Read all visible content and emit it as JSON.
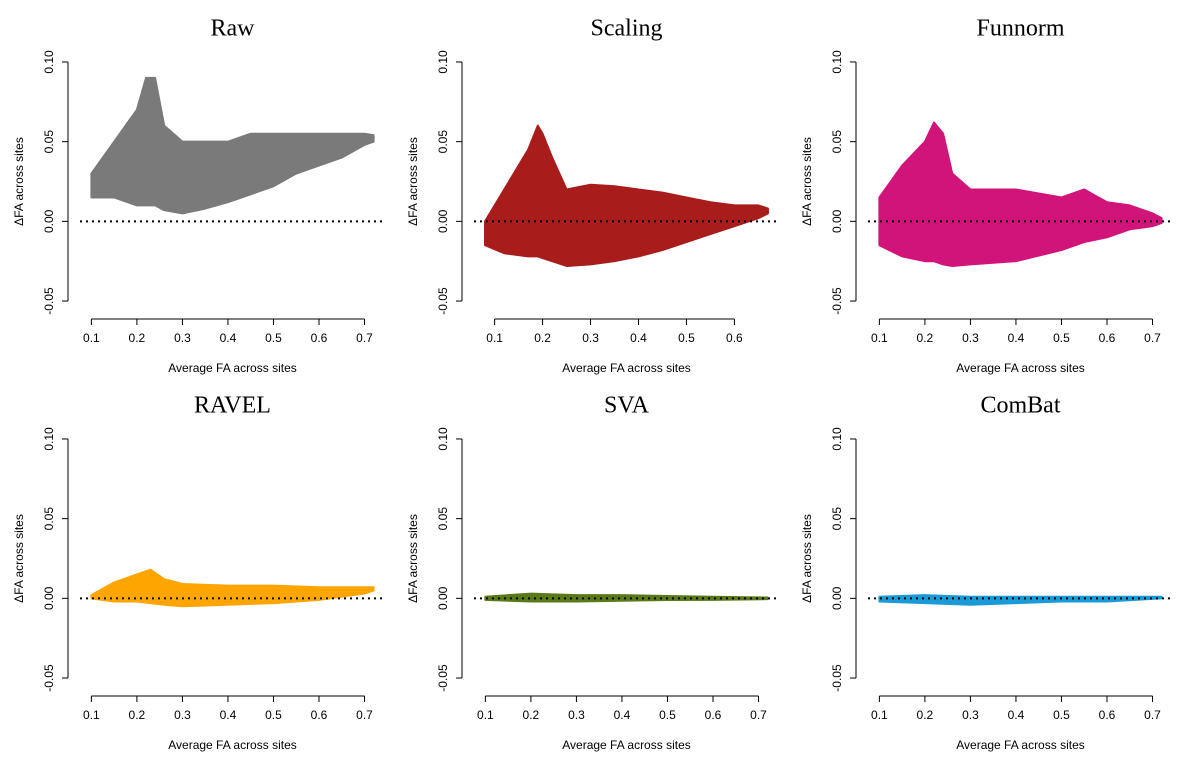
{
  "chart_data": [
    {
      "type": "scatter",
      "title": "Raw",
      "xlabel": "Average FA across sites",
      "ylabel": "ΔFA across sites",
      "color": "#7a7a7a",
      "x": [
        0.1,
        0.15,
        0.2,
        0.22,
        0.24,
        0.26,
        0.3,
        0.35,
        0.4,
        0.45,
        0.5,
        0.55,
        0.6,
        0.65,
        0.7,
        0.72
      ],
      "upper": [
        0.03,
        0.05,
        0.07,
        0.09,
        0.09,
        0.06,
        0.05,
        0.05,
        0.05,
        0.055,
        0.055,
        0.055,
        0.055,
        0.055,
        0.055,
        0.054
      ],
      "lower": [
        0.015,
        0.015,
        0.01,
        0.01,
        0.01,
        0.007,
        0.005,
        0.008,
        0.012,
        0.017,
        0.022,
        0.03,
        0.035,
        0.04,
        0.048,
        0.05
      ],
      "hline": 0,
      "xlim": [
        0.075,
        0.745
      ],
      "xticks": [
        0.1,
        0.2,
        0.3,
        0.4,
        0.5,
        0.6,
        0.7
      ],
      "ylim": [
        -0.055,
        0.105
      ],
      "yticks": [
        -0.05,
        {
          "value": 0,
          "label": "0.00"
        },
        0.05,
        {
          "value": 0.1,
          "label": "0.10"
        }
      ]
    },
    {
      "type": "scatter",
      "title": "Scaling",
      "xlabel": "Average FA across sites",
      "ylabel": "ΔFA across sites",
      "color": "#a81c1c",
      "x": [
        0.08,
        0.12,
        0.17,
        0.19,
        0.2,
        0.22,
        0.25,
        0.3,
        0.35,
        0.4,
        0.45,
        0.5,
        0.55,
        0.6,
        0.65,
        0.67
      ],
      "upper": [
        0.0,
        0.02,
        0.045,
        0.06,
        0.055,
        0.04,
        0.02,
        0.023,
        0.022,
        0.02,
        0.018,
        0.015,
        0.012,
        0.01,
        0.01,
        0.008
      ],
      "lower": [
        -0.015,
        -0.02,
        -0.022,
        -0.022,
        -0.023,
        -0.025,
        -0.028,
        -0.027,
        -0.025,
        -0.022,
        -0.018,
        -0.013,
        -0.008,
        -0.003,
        0.002,
        0.005
      ],
      "hline": 0,
      "xlim": [
        0.057,
        0.693
      ],
      "xticks": [
        0.1,
        0.2,
        0.3,
        0.4,
        0.5,
        0.6
      ],
      "ylim": [
        -0.055,
        0.105
      ],
      "yticks": [
        -0.05,
        {
          "value": 0,
          "label": "0.00"
        },
        0.05,
        {
          "value": 0.1,
          "label": "0.10"
        }
      ]
    },
    {
      "type": "scatter",
      "title": "Funnorm",
      "xlabel": "Average FA across sites",
      "ylabel": "ΔFA across sites",
      "color": "#d0147a",
      "x": [
        0.1,
        0.15,
        0.2,
        0.22,
        0.24,
        0.26,
        0.3,
        0.4,
        0.5,
        0.55,
        0.6,
        0.65,
        0.7,
        0.72
      ],
      "upper": [
        0.015,
        0.035,
        0.05,
        0.062,
        0.055,
        0.03,
        0.02,
        0.02,
        0.015,
        0.02,
        0.012,
        0.01,
        0.005,
        0.002
      ],
      "lower": [
        -0.015,
        -0.022,
        -0.025,
        -0.025,
        -0.027,
        -0.028,
        -0.027,
        -0.025,
        -0.018,
        -0.013,
        -0.01,
        -0.005,
        -0.003,
        -0.001
      ],
      "hline": 0,
      "xlim": [
        0.075,
        0.745
      ],
      "xticks": [
        0.1,
        0.2,
        0.3,
        0.4,
        0.5,
        0.6,
        0.7
      ],
      "ylim": [
        -0.055,
        0.105
      ],
      "yticks": [
        -0.05,
        {
          "value": 0,
          "label": "0.00"
        },
        0.05,
        {
          "value": 0.1,
          "label": "0.10"
        }
      ]
    },
    {
      "type": "scatter",
      "title": "RAVEL",
      "xlabel": "Average FA across sites",
      "ylabel": "ΔFA across sites",
      "color": "#ffa500",
      "x": [
        0.1,
        0.15,
        0.2,
        0.23,
        0.26,
        0.3,
        0.4,
        0.5,
        0.6,
        0.7,
        0.72
      ],
      "upper": [
        0.002,
        0.01,
        0.015,
        0.018,
        0.012,
        0.009,
        0.008,
        0.008,
        0.007,
        0.007,
        0.007
      ],
      "lower": [
        0.0,
        -0.002,
        -0.002,
        -0.003,
        -0.004,
        -0.005,
        -0.004,
        -0.003,
        -0.001,
        0.003,
        0.005
      ],
      "hline": 0,
      "xlim": [
        0.075,
        0.745
      ],
      "xticks": [
        0.1,
        0.2,
        0.3,
        0.4,
        0.5,
        0.6,
        0.7
      ],
      "ylim": [
        -0.055,
        0.105
      ],
      "yticks": [
        -0.05,
        {
          "value": 0,
          "label": "0.00"
        },
        0.05,
        {
          "value": 0.1,
          "label": "0.10"
        }
      ]
    },
    {
      "type": "scatter",
      "title": "SVA",
      "xlabel": "Average FA across sites",
      "ylabel": "ΔFA across sites",
      "color": "#5a7a1a",
      "x": [
        0.1,
        0.2,
        0.3,
        0.4,
        0.5,
        0.6,
        0.72
      ],
      "upper": [
        0.001,
        0.003,
        0.002,
        0.002,
        0.0015,
        0.001,
        0.0005
      ],
      "lower": [
        -0.001,
        -0.002,
        -0.002,
        -0.0015,
        -0.001,
        -0.001,
        -0.0005
      ],
      "hline": 0,
      "xlim": [
        0.075,
        0.745
      ],
      "xticks": [
        0.1,
        0.2,
        0.3,
        0.4,
        0.5,
        0.6,
        0.7
      ],
      "ylim": [
        -0.055,
        0.105
      ],
      "yticks": [
        -0.05,
        {
          "value": 0,
          "label": "0.00"
        },
        0.05,
        {
          "value": 0.1,
          "label": "0.10"
        }
      ]
    },
    {
      "type": "scatter",
      "title": "ComBat",
      "xlabel": "Average FA across sites",
      "ylabel": "ΔFA across sites",
      "color": "#1a9ad6",
      "x": [
        0.1,
        0.2,
        0.3,
        0.4,
        0.5,
        0.6,
        0.72
      ],
      "upper": [
        0.001,
        0.002,
        0.001,
        0.001,
        0.001,
        0.001,
        0.001
      ],
      "lower": [
        -0.002,
        -0.003,
        -0.004,
        -0.003,
        -0.002,
        -0.002,
        0.0
      ],
      "hline": 0,
      "xlim": [
        0.075,
        0.745
      ],
      "xticks": [
        0.1,
        0.2,
        0.3,
        0.4,
        0.5,
        0.6,
        0.7
      ],
      "ylim": [
        -0.055,
        0.105
      ],
      "yticks": [
        -0.05,
        {
          "value": 0,
          "label": "0.00"
        },
        0.05,
        {
          "value": 0.1,
          "label": "0.10"
        }
      ]
    }
  ]
}
